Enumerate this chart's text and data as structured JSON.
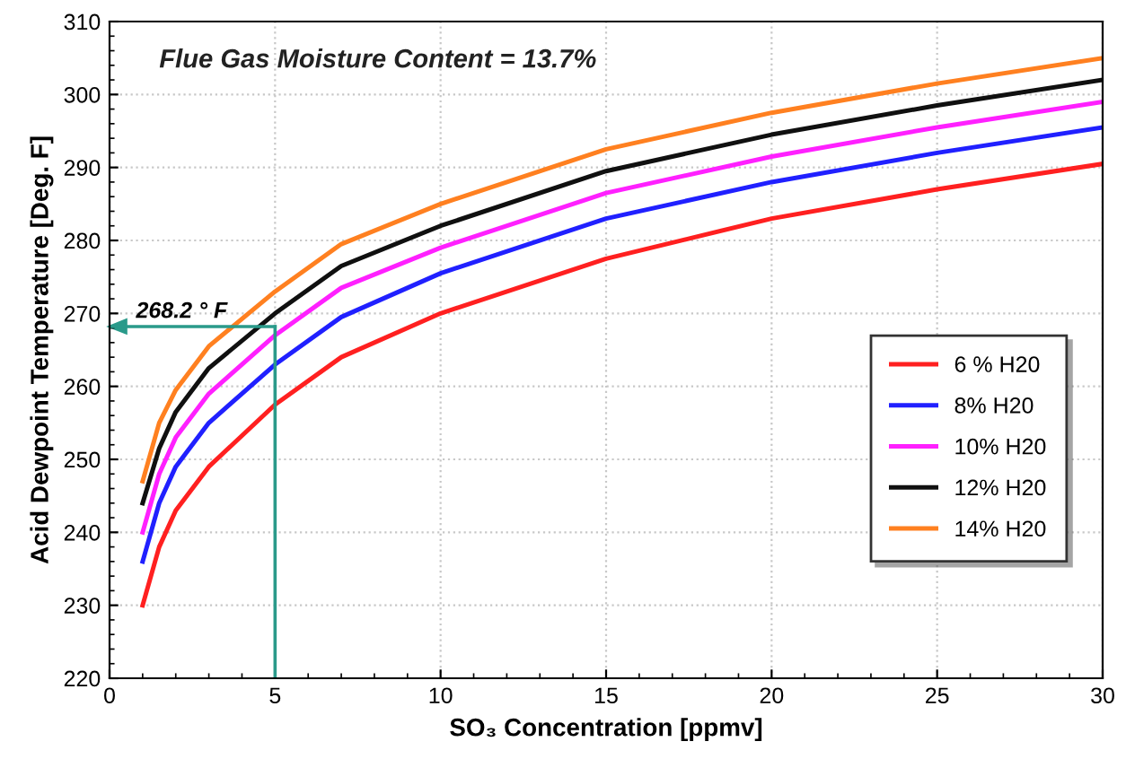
{
  "chart_data": {
    "type": "line",
    "xlabel": "SO₃ Concentration [ppmv]",
    "ylabel": "Acid Dewpoint Temperature [Deg. F]",
    "annotations": [
      "Flue Gas Moisture Content = 13.7%"
    ],
    "x": [
      1,
      1.5,
      2,
      3,
      5,
      7,
      10,
      15,
      20,
      25,
      30
    ],
    "series": [
      {
        "name": "6 % H20",
        "color": "#ff2020",
        "values": [
          230,
          238,
          243,
          249,
          257.5,
          264,
          270,
          277.5,
          283,
          287,
          290.5
        ]
      },
      {
        "name": "8% H20",
        "color": "#2020ff",
        "values": [
          236,
          244,
          249,
          255,
          263,
          269.5,
          275.5,
          283,
          288,
          292,
          295.5
        ]
      },
      {
        "name": "10% H20",
        "color": "#ff20ff",
        "values": [
          240,
          248,
          253,
          259,
          267,
          273.5,
          279,
          286.5,
          291.5,
          295.5,
          299
        ]
      },
      {
        "name": "12% H20",
        "color": "#101010",
        "values": [
          244,
          251.5,
          256.5,
          262.5,
          270,
          276.5,
          282,
          289.5,
          294.5,
          298.5,
          302
        ]
      },
      {
        "name": "14% H20",
        "color": "#ff8020",
        "values": [
          247,
          255,
          259.5,
          265.5,
          273,
          279.5,
          285,
          292.5,
          297.5,
          301.5,
          305
        ]
      }
    ],
    "ref_lines": [
      {
        "axis": "y",
        "value": 268.2,
        "label": "268.2 ° F",
        "color": "#2a9a8a"
      },
      {
        "axis": "x",
        "value": 5,
        "color": "#2a9a8a"
      }
    ],
    "xlim": [
      0,
      30
    ],
    "ylim": [
      220,
      310
    ],
    "xticks": [
      0,
      5,
      10,
      15,
      20,
      25,
      30
    ],
    "yticks": [
      220,
      230,
      240,
      250,
      260,
      270,
      280,
      290,
      300,
      310
    ],
    "grid": true,
    "legend": "right",
    "marker": "none",
    "line_style": "solid"
  }
}
